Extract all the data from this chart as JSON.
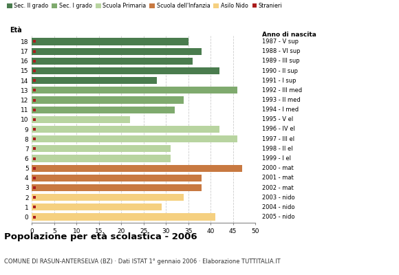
{
  "ages": [
    18,
    17,
    16,
    15,
    14,
    13,
    12,
    11,
    10,
    9,
    8,
    7,
    6,
    5,
    4,
    3,
    2,
    1,
    0
  ],
  "values": [
    35,
    38,
    36,
    42,
    28,
    46,
    34,
    32,
    22,
    42,
    46,
    31,
    31,
    47,
    38,
    38,
    34,
    29,
    41
  ],
  "stranieri": [
    1,
    1,
    1,
    1,
    1,
    1,
    2,
    1,
    1,
    1,
    1,
    1,
    1,
    2,
    1,
    2,
    1,
    1,
    1
  ],
  "anno_nascita": [
    "1987 - V sup",
    "1988 - VI sup",
    "1989 - III sup",
    "1990 - II sup",
    "1991 - I sup",
    "1992 - III med",
    "1993 - II med",
    "1994 - I med",
    "1995 - V el",
    "1996 - IV el",
    "1997 - III el",
    "1998 - II el",
    "1999 - I el",
    "2000 - mat",
    "2001 - mat",
    "2002 - mat",
    "2003 - nido",
    "2004 - nido",
    "2005 - nido"
  ],
  "colors": {
    "sec2": "#4a7c4e",
    "sec1": "#7faa6e",
    "primaria": "#b8d4a0",
    "infanzia": "#c87941",
    "nido": "#f5d080",
    "stranieri": "#aa1c1c"
  },
  "bar_colors": [
    "sec2",
    "sec2",
    "sec2",
    "sec2",
    "sec2",
    "sec1",
    "sec1",
    "sec1",
    "primaria",
    "primaria",
    "primaria",
    "primaria",
    "primaria",
    "infanzia",
    "infanzia",
    "infanzia",
    "nido",
    "nido",
    "nido"
  ],
  "legend_labels": [
    "Sec. II grado",
    "Sec. I grado",
    "Scuola Primaria",
    "Scuola dell'Infanzia",
    "Asilo Nido",
    "Stranieri"
  ],
  "legend_colors": [
    "#4a7c4e",
    "#7faa6e",
    "#b8d4a0",
    "#c87941",
    "#f5d080",
    "#aa1c1c"
  ],
  "title": "Popolazione per età scolastica - 2006",
  "subtitle": "COMUNE DI RASUN-ANTERSELVA (BZ) · Dati ISTAT 1° gennaio 2006 · Elaborazione TUTTITALIA.IT",
  "xlabel_left": "Età",
  "xlabel_right": "Anno di nascita",
  "xlim": [
    0,
    50
  ],
  "xticks": [
    0,
    5,
    10,
    15,
    20,
    25,
    30,
    35,
    40,
    45,
    50
  ],
  "bg_color": "#ffffff",
  "grid_color": "#cccccc"
}
